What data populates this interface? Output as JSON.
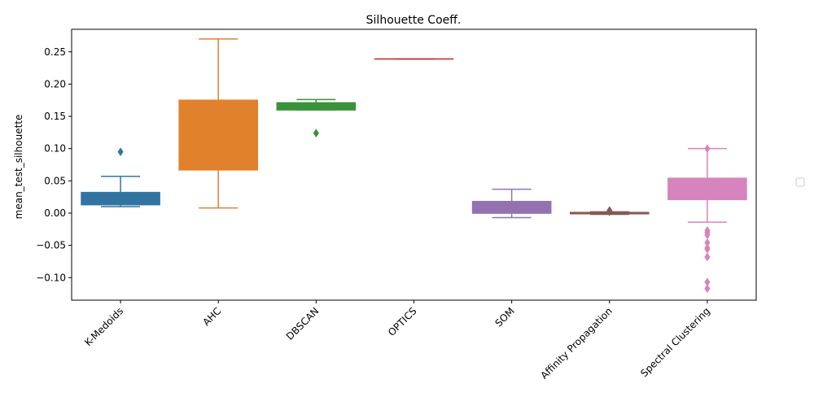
{
  "chart_data": {
    "type": "box",
    "title": "Silhouette Coeff.",
    "xlabel": "",
    "ylabel": "mean_test_silhouette",
    "ylim": [
      -0.135,
      0.285
    ],
    "yticks": [
      -0.1,
      -0.05,
      0.0,
      0.05,
      0.1,
      0.15,
      0.2,
      0.25
    ],
    "ytick_labels": [
      "−0.10",
      "−0.05",
      "0.00",
      "0.05",
      "0.10",
      "0.15",
      "0.20",
      "0.25"
    ],
    "categories": [
      "K-Medoids",
      "AHC",
      "DBSCAN",
      "OPTICS",
      "SOM",
      "Affinity Propagation",
      "Spectral Clustering"
    ],
    "boxes": [
      {
        "name": "K-Medoids",
        "color": "#3274a1",
        "whisker_low": 0.01,
        "q1": 0.013,
        "median": 0.03,
        "q3": 0.032,
        "whisker_high": 0.057,
        "outliers": [
          0.095
        ]
      },
      {
        "name": "AHC",
        "color": "#e1812c",
        "whisker_low": 0.008,
        "q1": 0.067,
        "median": 0.174,
        "q3": 0.175,
        "whisker_high": 0.27,
        "outliers": []
      },
      {
        "name": "DBSCAN",
        "color": "#3a923a",
        "whisker_low": 0.16,
        "q1": 0.16,
        "median": 0.17,
        "q3": 0.171,
        "whisker_high": 0.176,
        "outliers": [
          0.124
        ]
      },
      {
        "name": "OPTICS",
        "color": "#c03d3e",
        "whisker_low": 0.239,
        "q1": 0.239,
        "median": 0.239,
        "q3": 0.239,
        "whisker_high": 0.239,
        "outliers": []
      },
      {
        "name": "SOM",
        "color": "#9372b2",
        "whisker_low": -0.007,
        "q1": 0.0,
        "median": 0.0,
        "q3": 0.018,
        "whisker_high": 0.037,
        "outliers": []
      },
      {
        "name": "Affinity Propagation",
        "color": "#845b53",
        "whisker_low": -0.002,
        "q1": -0.001,
        "median": -0.001,
        "q3": 0.001,
        "whisker_high": 0.002,
        "outliers": [
          0.004,
          0.003,
          0.002
        ]
      },
      {
        "name": "Spectral Clustering",
        "color": "#d684bd",
        "whisker_low": -0.014,
        "q1": 0.021,
        "median": 0.05,
        "q3": 0.054,
        "whisker_high": 0.1,
        "outliers": [
          0.1,
          -0.027,
          -0.03,
          -0.034,
          -0.046,
          -0.054,
          -0.056,
          -0.068,
          -0.107,
          -0.117
        ]
      }
    ],
    "grid": false,
    "legend": {
      "position": "right",
      "entries": []
    }
  }
}
